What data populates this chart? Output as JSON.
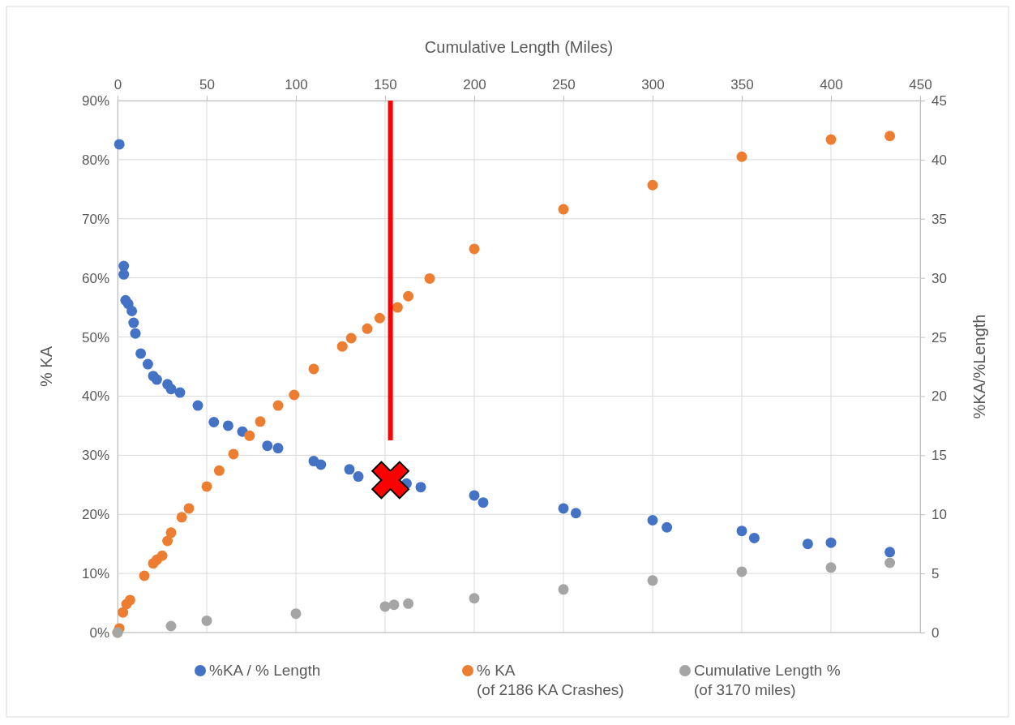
{
  "chart_data": {
    "type": "scatter",
    "xlabel": "Cumulative Length (Miles)",
    "ylabel": "% KA",
    "y2label": "%KA/%Length",
    "xlim": [
      0,
      450
    ],
    "xticks": [
      0,
      50,
      100,
      150,
      200,
      250,
      300,
      350,
      400,
      450
    ],
    "ylim": [
      0,
      90
    ],
    "yticks": [
      {
        "value": 0,
        "label": "0%"
      },
      {
        "value": 10,
        "label": "10%"
      },
      {
        "value": 20,
        "label": "20%"
      },
      {
        "value": 30,
        "label": "30%"
      },
      {
        "value": 40,
        "label": "40%"
      },
      {
        "value": 50,
        "label": "50%"
      },
      {
        "value": 60,
        "label": "60%"
      },
      {
        "value": 70,
        "label": "70%"
      },
      {
        "value": 80,
        "label": "80%"
      },
      {
        "value": 90,
        "label": "90%"
      }
    ],
    "y2lim": [
      0,
      45
    ],
    "y2ticks": [
      0,
      5,
      10,
      15,
      20,
      25,
      30,
      35,
      40,
      45
    ],
    "grid": true,
    "legend": "bottom",
    "marker": "circle",
    "series": [
      {
        "name": "%KA / % Length",
        "color": "#4472c4",
        "axis": "y2",
        "x": [
          1,
          3.5,
          3.5,
          4.5,
          6,
          8,
          9,
          10,
          13,
          17,
          20,
          22,
          28,
          30,
          35,
          45,
          54,
          62,
          70,
          84,
          90,
          110,
          114,
          130,
          135,
          162,
          170,
          200,
          205,
          250,
          257,
          300,
          308,
          350,
          357,
          387,
          400,
          433
        ],
        "values": [
          41.3,
          31,
          30.3,
          28.1,
          27.8,
          27.2,
          26.2,
          25.3,
          23.6,
          22.7,
          21.7,
          21.4,
          21,
          20.6,
          20.3,
          19.2,
          17.8,
          17.5,
          17,
          15.8,
          15.6,
          14.5,
          14.2,
          13.8,
          13.2,
          12.6,
          12.3,
          11.6,
          11,
          10.5,
          10.1,
          9.5,
          8.9,
          8.6,
          8,
          7.5,
          7.6,
          6.8
        ]
      },
      {
        "name": "% KA\n(of 2186 KA Crashes)",
        "color": "#ed7d31",
        "axis": "y",
        "x": [
          0,
          1,
          3,
          5,
          7,
          15,
          20,
          22,
          25,
          28,
          30,
          36,
          40,
          50,
          57,
          65,
          74,
          80,
          90,
          99,
          110,
          126,
          131,
          140,
          147,
          157,
          163,
          175,
          200,
          250,
          300,
          350,
          400,
          433
        ],
        "values": [
          0,
          0.7,
          3.4,
          4.8,
          5.5,
          9.6,
          11.7,
          12.3,
          13,
          15.5,
          16.9,
          19.5,
          21,
          24.7,
          27.4,
          30.2,
          33.3,
          35.7,
          38.4,
          40.2,
          44.6,
          48.4,
          49.8,
          51.4,
          53.2,
          55,
          56.9,
          59.9,
          64.9,
          71.6,
          75.7,
          80.5,
          83.4,
          84
        ]
      },
      {
        "name": "Cumulative Length %\n(of 3170 miles)",
        "color": "#a5a5a5",
        "axis": "y",
        "x": [
          0,
          30,
          50,
          100,
          150,
          155,
          163,
          200,
          250,
          300,
          350,
          400,
          433
        ],
        "values": [
          0,
          1.1,
          2,
          3.2,
          4.4,
          4.7,
          4.9,
          5.8,
          7.3,
          8.8,
          10.3,
          11,
          11.8
        ]
      },
      {
        "type": "line",
        "marker": "none",
        "color": "#ff0000",
        "axis": "y",
        "x": [
          153,
          153
        ],
        "values": [
          90,
          32.5
        ]
      },
      {
        "color": "#ff0000",
        "axis": "y2",
        "marker": "cross",
        "x": [
          153
        ],
        "values": [
          12.9
        ]
      }
    ]
  }
}
